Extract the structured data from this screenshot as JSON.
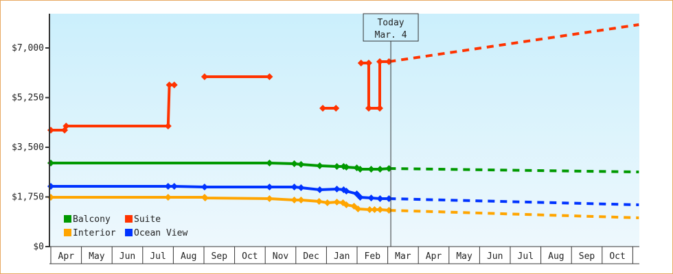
{
  "chart_data": {
    "type": "line",
    "title": "",
    "xlabel": "",
    "ylabel": "",
    "ylim": [
      0,
      8400
    ],
    "y_ticks": [
      {
        "value": 0,
        "label": "$0"
      },
      {
        "value": 1750,
        "label": "$1,750"
      },
      {
        "value": 3500,
        "label": "$3,500"
      },
      {
        "value": 5250,
        "label": "$5,250"
      },
      {
        "value": 7000,
        "label": "$7,000"
      }
    ],
    "x_tick_labels": [
      "Apr",
      "May",
      "Jun",
      "Jul",
      "Aug",
      "Sep",
      "Oct",
      "Nov",
      "Dec",
      "Jan",
      "Feb",
      "Mar",
      "Apr",
      "May",
      "Jun",
      "Jul",
      "Aug",
      "Sep",
      "Oct"
    ],
    "x_unit": "months since start of first April (0 = Apr 1, year 1)",
    "xlim": [
      0,
      19.2
    ],
    "grid": false,
    "legend_position": "lower-left inside plot",
    "today_marker": {
      "x": 11.1,
      "line1": "Today",
      "line2": "Mar. 4"
    },
    "series": [
      {
        "name": "Balcony",
        "color": "#009900",
        "history": [
          {
            "x": 0.0,
            "y": 2945
          },
          {
            "x": 7.14,
            "y": 2945
          },
          {
            "x": 7.95,
            "y": 2920
          },
          {
            "x": 8.17,
            "y": 2897
          },
          {
            "x": 8.78,
            "y": 2848
          },
          {
            "x": 9.34,
            "y": 2824
          },
          {
            "x": 9.56,
            "y": 2824
          },
          {
            "x": 9.65,
            "y": 2800
          },
          {
            "x": 9.99,
            "y": 2776
          },
          {
            "x": 10.1,
            "y": 2728
          },
          {
            "x": 10.46,
            "y": 2728
          },
          {
            "x": 10.75,
            "y": 2728
          },
          {
            "x": 11.04,
            "y": 2752
          }
        ],
        "forecast": [
          {
            "x": 11.04,
            "y": 2752
          },
          {
            "x": 19.2,
            "y": 2631
          }
        ]
      },
      {
        "name": "Suite",
        "color": "#ff3300",
        "history_segments": [
          [
            {
              "x": 0.0,
              "y": 4104
            },
            {
              "x": 0.45,
              "y": 4104
            },
            {
              "x": 0.5,
              "y": 4249
            },
            {
              "x": 3.83,
              "y": 4249
            },
            {
              "x": 3.87,
              "y": 5697
            },
            {
              "x": 4.03,
              "y": 5697
            }
          ],
          [
            {
              "x": 5.02,
              "y": 5987
            },
            {
              "x": 7.14,
              "y": 5987
            }
          ],
          [
            {
              "x": 8.88,
              "y": 4876
            },
            {
              "x": 9.31,
              "y": 4876
            }
          ],
          [
            {
              "x": 10.13,
              "y": 6470
            },
            {
              "x": 10.38,
              "y": 6470
            },
            {
              "x": 10.38,
              "y": 4876
            },
            {
              "x": 10.74,
              "y": 4876
            },
            {
              "x": 10.74,
              "y": 6518
            },
            {
              "x": 11.04,
              "y": 6518
            }
          ]
        ],
        "forecast": [
          {
            "x": 11.04,
            "y": 6518
          },
          {
            "x": 19.2,
            "y": 7821
          }
        ]
      },
      {
        "name": "Interior",
        "color": "#ffa500",
        "history": [
          {
            "x": 0.0,
            "y": 1738
          },
          {
            "x": 3.83,
            "y": 1738
          },
          {
            "x": 5.02,
            "y": 1738
          },
          {
            "x": 5.04,
            "y": 1714
          },
          {
            "x": 7.14,
            "y": 1690
          },
          {
            "x": 7.95,
            "y": 1641
          },
          {
            "x": 8.17,
            "y": 1641
          },
          {
            "x": 8.76,
            "y": 1593
          },
          {
            "x": 9.03,
            "y": 1545
          },
          {
            "x": 9.34,
            "y": 1569
          },
          {
            "x": 9.54,
            "y": 1545
          },
          {
            "x": 9.65,
            "y": 1472
          },
          {
            "x": 9.9,
            "y": 1424
          },
          {
            "x": 10.03,
            "y": 1328
          },
          {
            "x": 10.41,
            "y": 1304
          },
          {
            "x": 10.57,
            "y": 1304
          },
          {
            "x": 10.75,
            "y": 1304
          },
          {
            "x": 11.04,
            "y": 1279
          }
        ],
        "forecast": [
          {
            "x": 11.04,
            "y": 1279
          },
          {
            "x": 19.2,
            "y": 1014
          }
        ]
      },
      {
        "name": "Ocean View",
        "color": "#0033ff",
        "history": [
          {
            "x": 0.0,
            "y": 2124
          },
          {
            "x": 3.83,
            "y": 2124
          },
          {
            "x": 4.03,
            "y": 2124
          },
          {
            "x": 5.02,
            "y": 2100
          },
          {
            "x": 7.14,
            "y": 2100
          },
          {
            "x": 7.95,
            "y": 2100
          },
          {
            "x": 8.17,
            "y": 2076
          },
          {
            "x": 8.78,
            "y": 2004
          },
          {
            "x": 9.34,
            "y": 2028
          },
          {
            "x": 9.56,
            "y": 2004
          },
          {
            "x": 9.65,
            "y": 1955
          },
          {
            "x": 9.99,
            "y": 1859
          },
          {
            "x": 10.1,
            "y": 1738
          },
          {
            "x": 10.46,
            "y": 1714
          },
          {
            "x": 10.75,
            "y": 1690
          },
          {
            "x": 11.04,
            "y": 1690
          }
        ],
        "forecast": [
          {
            "x": 11.04,
            "y": 1690
          },
          {
            "x": 19.2,
            "y": 1472
          }
        ]
      }
    ],
    "legend": [
      {
        "label": "Balcony",
        "color": "#009900"
      },
      {
        "label": "Suite",
        "color": "#ff3300"
      },
      {
        "label": "Interior",
        "color": "#ffa500"
      },
      {
        "label": "Ocean View",
        "color": "#0033ff"
      }
    ]
  },
  "style": {
    "frame_border": "#e8a860",
    "plot_bg_top": "#cbeffc",
    "plot_bg_bottom": "#eef8fd",
    "axis_color": "#333333"
  }
}
